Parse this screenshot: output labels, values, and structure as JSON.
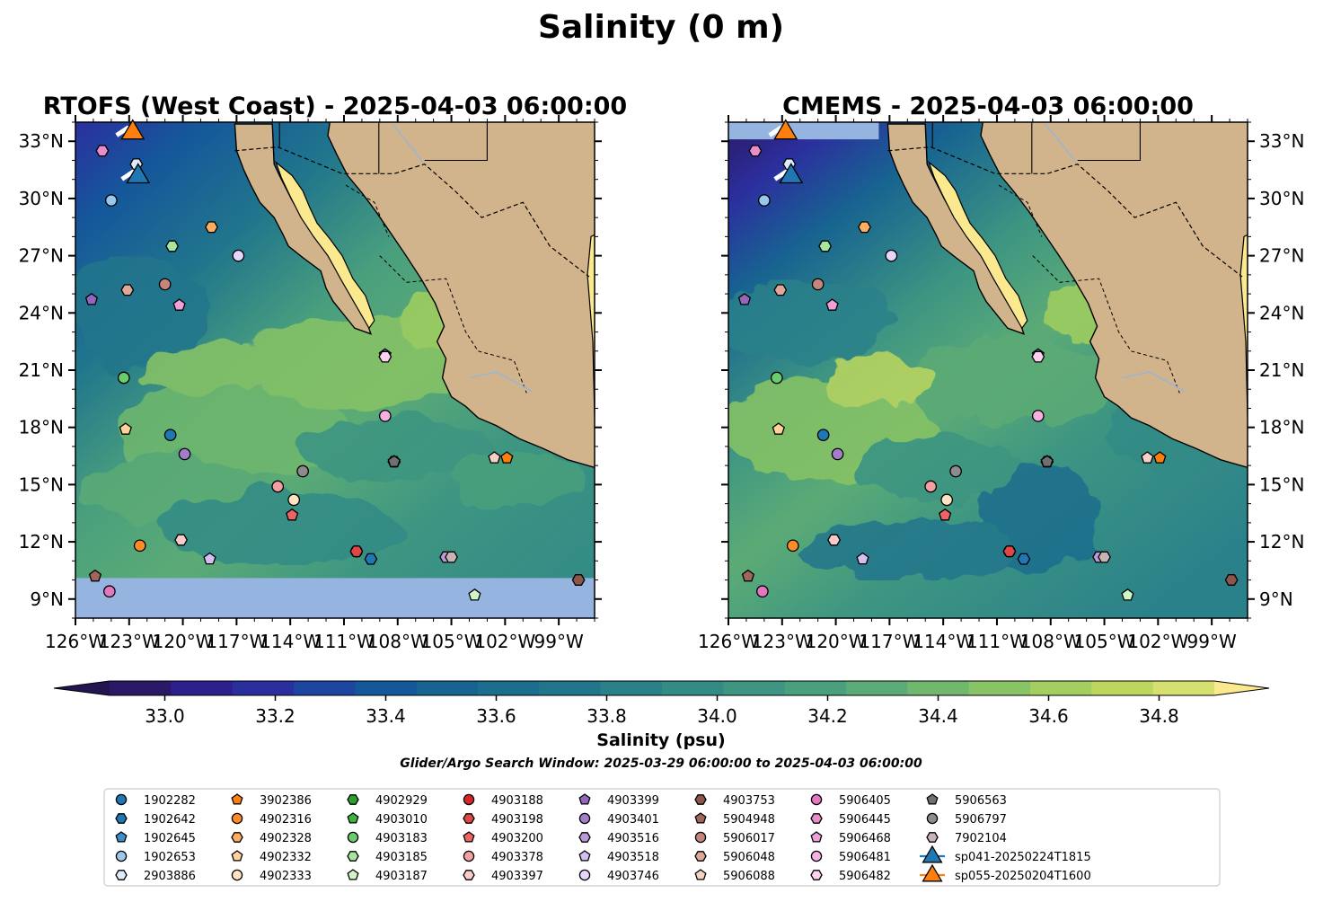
{
  "figure": {
    "title": "Salinity (0 m)",
    "window_text": "Glider/Argo Search Window: 2025-03-29 06:00:00 to 2025-04-03 06:00:00"
  },
  "panels": [
    {
      "id": "rtofs",
      "title": "RTOFS (West Coast) - 2025-04-03 06:00:00",
      "lat_labels_side": "left"
    },
    {
      "id": "cmems",
      "title": "CMEMS - 2025-04-03 06:00:00",
      "lat_labels_side": "right"
    }
  ],
  "map": {
    "lon_range": [
      -126,
      -97
    ],
    "lat_range": [
      8,
      34
    ],
    "lon_ticks": [
      -126,
      -123,
      -120,
      -117,
      -114,
      -111,
      -108,
      -105,
      -102,
      -99
    ],
    "lon_tick_labels": [
      "126°W",
      "123°W",
      "120°W",
      "117°W",
      "114°W",
      "111°W",
      "108°W",
      "105°W",
      "102°W",
      "99°W"
    ],
    "lat_ticks": [
      9,
      12,
      15,
      18,
      21,
      24,
      27,
      30,
      33
    ],
    "lat_tick_labels": [
      "9°N",
      "12°N",
      "15°N",
      "18°N",
      "21°N",
      "24°N",
      "27°N",
      "30°N",
      "33°N"
    ],
    "land_color": "#d2b48c",
    "nodata_color": "#96b4e0",
    "river_color": "#9bb4d4"
  },
  "colorbar": {
    "label": "Salinity (psu)",
    "range": [
      32.9,
      34.9
    ],
    "ticks": [
      33.0,
      33.2,
      33.4,
      33.6,
      33.8,
      34.0,
      34.2,
      34.4,
      34.6,
      34.8
    ],
    "tick_labels": [
      "33.0",
      "33.2",
      "33.4",
      "33.6",
      "33.8",
      "34.0",
      "34.2",
      "34.4",
      "34.6",
      "34.8"
    ],
    "colors": [
      "#2a1a66",
      "#2d1f8c",
      "#2b2f9e",
      "#1e46a0",
      "#15579b",
      "#176491",
      "#1b6e8d",
      "#21768c",
      "#2b818a",
      "#338b86",
      "#3d9582",
      "#4aa07d",
      "#5cab76",
      "#70b86e",
      "#88c465",
      "#a2cf5f",
      "#bdd75e",
      "#d6e070"
    ],
    "under_color": "#23154f",
    "over_color": "#fbe98f"
  },
  "platforms": [
    {
      "id": "1902282",
      "color": "#1f77b4",
      "marker": "circle",
      "lon": -120.7,
      "lat": 17.6
    },
    {
      "id": "1902642",
      "color": "#1f77b4",
      "marker": "hexagon",
      "lon": -109.5,
      "lat": 11.1
    },
    {
      "id": "1902645",
      "color": "#3a8fd0",
      "marker": "pentagon",
      "lon": -108.7,
      "lat": 21.8
    },
    {
      "id": "1902653",
      "color": "#9ac8eb",
      "marker": "circle",
      "lon": -124.0,
      "lat": 29.9
    },
    {
      "id": "2903886",
      "color": "#dcecf8",
      "marker": "hexagon",
      "lon": -122.6,
      "lat": 31.8
    },
    {
      "id": "3902386",
      "color": "#ff7f0e",
      "marker": "pentagon",
      "lon": -101.9,
      "lat": 16.4
    },
    {
      "id": "4902316",
      "color": "#ff8c28",
      "marker": "circle",
      "lon": -122.4,
      "lat": 11.8
    },
    {
      "id": "4902328",
      "color": "#ffad60",
      "marker": "hexagon",
      "lon": -118.4,
      "lat": 28.5
    },
    {
      "id": "4902332",
      "color": "#ffd29b",
      "marker": "pentagon",
      "lon": -123.2,
      "lat": 17.9
    },
    {
      "id": "4902333",
      "color": "#ffe3c2",
      "marker": "circle",
      "lon": -113.8,
      "lat": 14.2
    },
    {
      "id": "4902929",
      "color": "#2ca02c",
      "marker": "hexagon",
      "lon": -108.2,
      "lat": 16.2
    },
    {
      "id": "4903010",
      "color": "#3cb43c",
      "marker": "pentagon",
      "lon": -108.2,
      "lat": 16.2
    },
    {
      "id": "4903183",
      "color": "#6ccc6c",
      "marker": "circle",
      "lon": -123.3,
      "lat": 20.6
    },
    {
      "id": "4903185",
      "color": "#a8e6a0",
      "marker": "hexagon",
      "lon": -120.6,
      "lat": 27.5
    },
    {
      "id": "4903187",
      "color": "#d2f5c8",
      "marker": "pentagon",
      "lon": -103.7,
      "lat": 9.2
    },
    {
      "id": "4903188",
      "color": "#d62728",
      "marker": "circle",
      "lon": -110.3,
      "lat": 11.5
    },
    {
      "id": "4903198",
      "color": "#e04646",
      "marker": "hexagon",
      "lon": -110.3,
      "lat": 11.5
    },
    {
      "id": "4903200",
      "color": "#ec6464",
      "marker": "pentagon",
      "lon": -113.9,
      "lat": 13.4
    },
    {
      "id": "4903378",
      "color": "#f4a0a0",
      "marker": "circle",
      "lon": -114.7,
      "lat": 14.9
    },
    {
      "id": "4903397",
      "color": "#fbcaca",
      "marker": "hexagon",
      "lon": -120.1,
      "lat": 12.1
    },
    {
      "id": "4903399",
      "color": "#9467bd",
      "marker": "pentagon",
      "lon": -125.1,
      "lat": 24.7
    },
    {
      "id": "4903401",
      "color": "#a47dc8",
      "marker": "circle",
      "lon": -119.9,
      "lat": 16.6
    },
    {
      "id": "4903516",
      "color": "#b99ad6",
      "marker": "hexagon",
      "lon": -105.3,
      "lat": 11.2
    },
    {
      "id": "4903518",
      "color": "#d3bff0",
      "marker": "pentagon",
      "lon": -118.5,
      "lat": 11.1
    },
    {
      "id": "4903746",
      "color": "#e6d7fa",
      "marker": "circle",
      "lon": -116.9,
      "lat": 27.0
    },
    {
      "id": "4903753",
      "color": "#8c564b",
      "marker": "hexagon",
      "lon": -97.9,
      "lat": 10.0
    },
    {
      "id": "5904948",
      "color": "#a0665a",
      "marker": "pentagon",
      "lon": -124.9,
      "lat": 10.2
    },
    {
      "id": "5906017",
      "color": "#c4867a",
      "marker": "circle",
      "lon": -121.0,
      "lat": 25.5
    },
    {
      "id": "5906048",
      "color": "#e0a898",
      "marker": "hexagon",
      "lon": -123.1,
      "lat": 25.2
    },
    {
      "id": "5906088",
      "color": "#f5d2c4",
      "marker": "pentagon",
      "lon": -102.6,
      "lat": 16.4
    },
    {
      "id": "5906405",
      "color": "#e377c2",
      "marker": "circle",
      "lon": -124.1,
      "lat": 9.4
    },
    {
      "id": "5906445",
      "color": "#ea8ccc",
      "marker": "hexagon",
      "lon": -124.5,
      "lat": 32.5
    },
    {
      "id": "5906468",
      "color": "#f0a0d8",
      "marker": "pentagon",
      "lon": -120.2,
      "lat": 24.4
    },
    {
      "id": "5906481",
      "color": "#f7b0e2",
      "marker": "circle",
      "lon": -108.7,
      "lat": 18.6
    },
    {
      "id": "5906482",
      "color": "#fcd0ee",
      "marker": "hexagon",
      "lon": -108.7,
      "lat": 21.7
    },
    {
      "id": "5906563",
      "color": "#707070",
      "marker": "pentagon",
      "lon": -108.2,
      "lat": 16.2
    },
    {
      "id": "5906797",
      "color": "#8c8c8c",
      "marker": "circle",
      "lon": -113.3,
      "lat": 15.7
    },
    {
      "id": "7902104",
      "color": "#c8b4b4",
      "marker": "hexagon",
      "lon": -105.0,
      "lat": 11.2
    }
  ],
  "gliders": [
    {
      "id": "sp041-20250224T1815",
      "color": "#1f77b4",
      "lon": -122.5,
      "lat": 31.2
    },
    {
      "id": "sp055-20250204T1600",
      "color": "#ff7f0e",
      "lon": -122.8,
      "lat": 33.5
    }
  ]
}
